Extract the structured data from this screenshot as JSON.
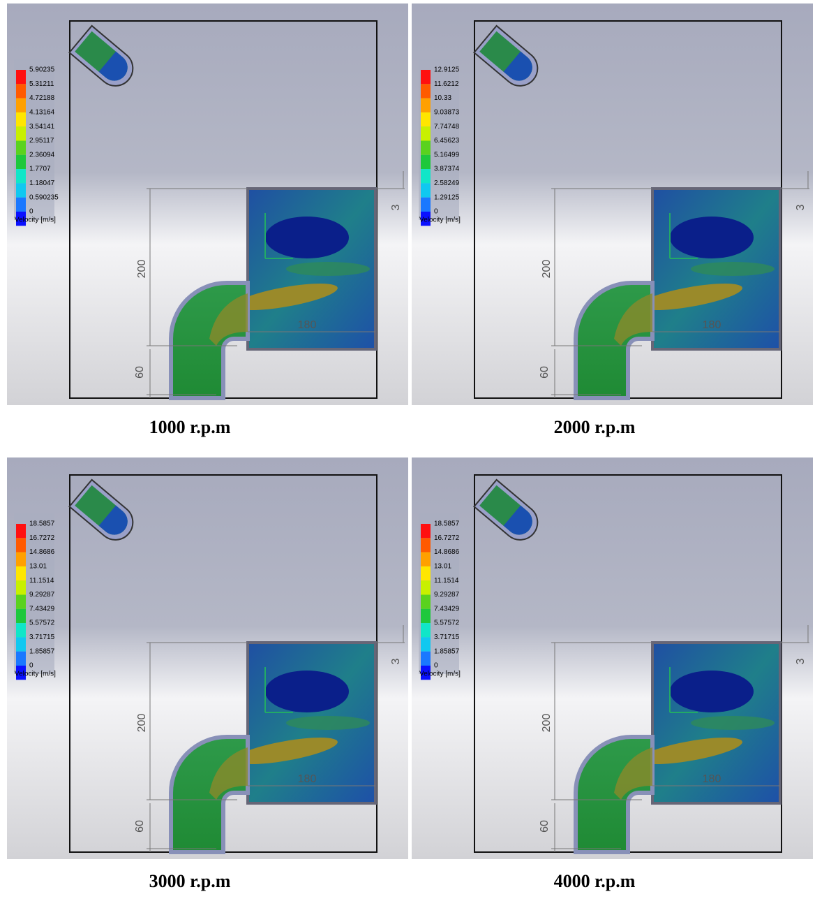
{
  "panels": [
    {
      "caption": "1000 r.p.m",
      "legend": {
        "title": "Velocity [m/s]",
        "values": [
          "5.90235",
          "5.31211",
          "4.72188",
          "4.13164",
          "3.54141",
          "2.95117",
          "2.36094",
          "1.7707",
          "1.18047",
          "0.590235",
          "0"
        ]
      },
      "dimensions": [
        "200",
        "60",
        "180",
        "3"
      ]
    },
    {
      "caption": "2000 r.p.m",
      "legend": {
        "title": "Velocity [m/s]",
        "values": [
          "12.9125",
          "11.6212",
          "10.33",
          "9.03873",
          "7.74748",
          "6.45623",
          "5.16499",
          "3.87374",
          "2.58249",
          "1.29125",
          "0"
        ]
      },
      "dimensions": [
        "200",
        "60",
        "180",
        "3"
      ]
    },
    {
      "caption": "3000 r.p.m",
      "legend": {
        "title": "Velocity [m/s]",
        "values": [
          "18.5857",
          "16.7272",
          "14.8686",
          "13.01",
          "11.1514",
          "9.29287",
          "7.43429",
          "5.57572",
          "3.71715",
          "1.85857",
          "0"
        ]
      },
      "dimensions": [
        "200",
        "60",
        "180",
        "3"
      ]
    },
    {
      "caption": "4000 r.p.m",
      "legend": {
        "title": "Velocity [m/s]",
        "values": [
          "18.5857",
          "16.7272",
          "14.8686",
          "13.01",
          "11.1514",
          "9.29287",
          "7.43429",
          "5.57572",
          "3.71715",
          "1.85857",
          "0"
        ]
      },
      "dimensions": [
        "200",
        "60",
        "180",
        "3"
      ]
    }
  ]
}
